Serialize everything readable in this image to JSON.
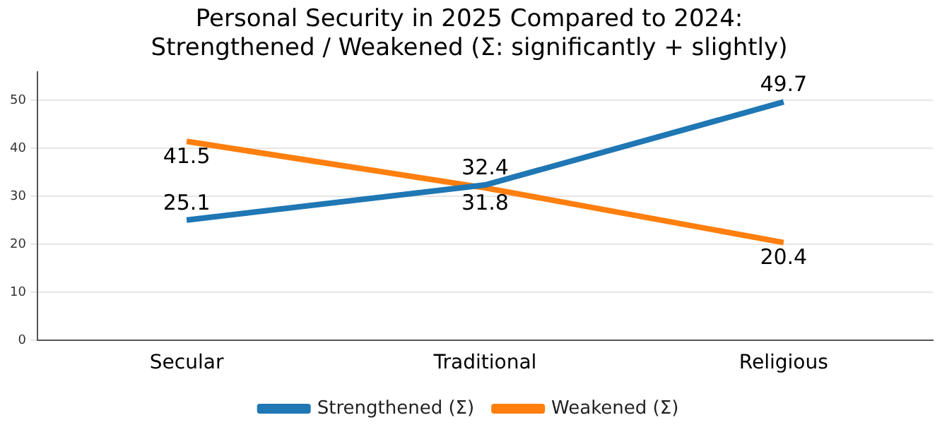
{
  "chart_data": {
    "type": "line",
    "title": "Personal Security in 2025 Compared to 2024:\nStrengthened / Weakened (Σ: significantly + slightly)",
    "categories": [
      "Secular",
      "Traditional",
      "Religious"
    ],
    "series": [
      {
        "name": "Strengthened (Σ)",
        "color": "#1f77b4",
        "values": [
          25.1,
          32.4,
          49.7
        ]
      },
      {
        "name": "Weakened (Σ)",
        "color": "#ff7f0e",
        "values": [
          41.5,
          31.8,
          20.4
        ]
      }
    ],
    "ylim": [
      0,
      56
    ],
    "yticks": [
      0,
      10,
      20,
      30,
      40,
      50
    ],
    "grid": "y",
    "legend": "bottom",
    "data_labels": true,
    "marker": "none",
    "line_style": "solid"
  }
}
